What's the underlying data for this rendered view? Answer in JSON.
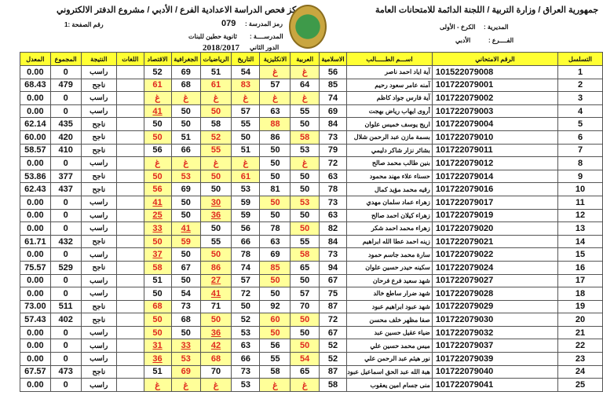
{
  "header": {
    "right_title": "جمهورية العراق / وزارة التربية / اللجنة الدائمة للامتحانات العامة",
    "left_title": "مركز فحص الدراسة الاعدادية الفرع / الأدبي / مشروع الدفتر الالكتروني",
    "directorate_label": "المديرية :",
    "directorate": "الكرخ - الأولى",
    "branch_label": "الفــــرع :",
    "branch": "الأدبي",
    "school_code_label": "رمز المدرسة :",
    "school_code": "079",
    "school_label": "المدرســــة :",
    "school": "ثانوية حطين للبنات",
    "round_label": "الدور الثاني",
    "year": "2018/2017",
    "page_label": "رقم الصفحة :1"
  },
  "columns": [
    "المعدل",
    "المجموع",
    "النتيجة",
    "اللغات",
    "الاقتصاد",
    "الجغرافية",
    "الرياضيات",
    "التاريخ",
    "الانكليزية",
    "العربية",
    "الاسلامية",
    "اســـم الطـــــالب",
    "الرقم الامتحاني",
    "التسلسل"
  ],
  "highlight_colors": {
    "cell": "#ffff99",
    "text": "#e0281e",
    "header": "#ffff33"
  },
  "rows": [
    {
      "seq": "1",
      "exam": "101522079008",
      "name": "آية اياد احمد ناصر",
      "grades": [
        "52",
        "69",
        "51",
        "54",
        "غ",
        "غ",
        "56"
      ],
      "hl": [
        0,
        0,
        0,
        0,
        1,
        1,
        0
      ],
      "u": [],
      "result": "راسب",
      "total": "0",
      "avg": "0.00"
    },
    {
      "seq": "2",
      "exam": "101722079001",
      "name": "آمنه عامر سعود رحيم",
      "grades": [
        "61",
        "68",
        "61",
        "83",
        "57",
        "64",
        "85"
      ],
      "hl": [
        1,
        0,
        1,
        1,
        0,
        0,
        0
      ],
      "u": [],
      "result": "ناجح",
      "total": "479",
      "avg": "68.43"
    },
    {
      "seq": "3",
      "exam": "101722079002",
      "name": "آية فارس جواد كاظم",
      "grades": [
        "غ",
        "غ",
        "غ",
        "غ",
        "غ",
        "غ",
        "74"
      ],
      "hl": [
        1,
        1,
        1,
        1,
        1,
        1,
        0
      ],
      "u": [],
      "result": "راسب",
      "total": "0",
      "avg": "0.00"
    },
    {
      "seq": "4",
      "exam": "101722079003",
      "name": "أروى ايهاب رياض بهجت",
      "grades": [
        "41",
        "50",
        "50",
        "57",
        "63",
        "55",
        "69"
      ],
      "hl": [
        1,
        0,
        1,
        0,
        0,
        0,
        0
      ],
      "u": [
        0
      ],
      "result": "راسب",
      "total": "0",
      "avg": "0.00"
    },
    {
      "seq": "5",
      "exam": "101722079004",
      "name": "اريج يوسف خميس علوان",
      "grades": [
        "50",
        "50",
        "58",
        "55",
        "88",
        "50",
        "84"
      ],
      "hl": [
        0,
        0,
        0,
        0,
        1,
        0,
        0
      ],
      "u": [],
      "result": "ناجح",
      "total": "435",
      "avg": "62.14"
    },
    {
      "seq": "6",
      "exam": "101722079010",
      "name": "بسمة مازن عبد الرحمن شلال",
      "grades": [
        "50",
        "51",
        "52",
        "50",
        "86",
        "58",
        "73"
      ],
      "hl": [
        1,
        0,
        1,
        0,
        0,
        1,
        0
      ],
      "u": [],
      "result": "ناجح",
      "total": "420",
      "avg": "60.00"
    },
    {
      "seq": "7",
      "exam": "101722079011",
      "name": "بشائر نزار شاكر دليمي",
      "grades": [
        "56",
        "66",
        "55",
        "51",
        "50",
        "53",
        "79"
      ],
      "hl": [
        0,
        0,
        1,
        0,
        0,
        0,
        0
      ],
      "u": [],
      "result": "ناجح",
      "total": "410",
      "avg": "58.57"
    },
    {
      "seq": "8",
      "exam": "101722079012",
      "name": "بنين طالب محمد صالح",
      "grades": [
        "غ",
        "غ",
        "غ",
        "غ",
        "50",
        "غ",
        "72"
      ],
      "hl": [
        1,
        1,
        1,
        1,
        0,
        1,
        0
      ],
      "u": [],
      "result": "راسب",
      "total": "0",
      "avg": "0.00"
    },
    {
      "seq": "9",
      "exam": "101722079014",
      "name": "حسناء علاء مهند محمود",
      "grades": [
        "50",
        "53",
        "50",
        "61",
        "50",
        "50",
        "63"
      ],
      "hl": [
        1,
        1,
        1,
        1,
        0,
        0,
        0
      ],
      "u": [],
      "result": "ناجح",
      "total": "377",
      "avg": "53.86"
    },
    {
      "seq": "10",
      "exam": "101722079016",
      "name": "رقيه محمد مؤيد كمال",
      "grades": [
        "56",
        "69",
        "50",
        "53",
        "81",
        "50",
        "78"
      ],
      "hl": [
        1,
        0,
        0,
        0,
        0,
        0,
        0
      ],
      "u": [],
      "result": "ناجح",
      "total": "437",
      "avg": "62.43"
    },
    {
      "seq": "11",
      "exam": "101722079017",
      "name": "زهراء عماد سلمان مهدي",
      "grades": [
        "41",
        "50",
        "30",
        "59",
        "50",
        "53",
        "73"
      ],
      "hl": [
        1,
        0,
        1,
        0,
        1,
        1,
        0
      ],
      "u": [
        0,
        2
      ],
      "result": "راسب",
      "total": "0",
      "avg": "0.00"
    },
    {
      "seq": "12",
      "exam": "101722079019",
      "name": "زهراء كيلان احمد صالح",
      "grades": [
        "25",
        "50",
        "36",
        "59",
        "50",
        "50",
        "63"
      ],
      "hl": [
        1,
        0,
        1,
        0,
        0,
        0,
        0
      ],
      "u": [
        0,
        2
      ],
      "result": "راسب",
      "total": "0",
      "avg": "0.00"
    },
    {
      "seq": "13",
      "exam": "101722079020",
      "name": "زهراء محمد احمد شكر",
      "grades": [
        "33",
        "41",
        "50",
        "56",
        "78",
        "50",
        "82"
      ],
      "hl": [
        1,
        1,
        0,
        0,
        0,
        1,
        0
      ],
      "u": [
        0,
        1
      ],
      "result": "راسب",
      "total": "0",
      "avg": "0.00"
    },
    {
      "seq": "14",
      "exam": "101722079021",
      "name": "زينه احمد عطا الله ابراهيم",
      "grades": [
        "50",
        "59",
        "55",
        "66",
        "63",
        "55",
        "84"
      ],
      "hl": [
        1,
        1,
        0,
        0,
        0,
        0,
        0
      ],
      "u": [],
      "result": "ناجح",
      "total": "432",
      "avg": "61.71"
    },
    {
      "seq": "15",
      "exam": "101722079022",
      "name": "سارة محمد جاسم حمود",
      "grades": [
        "37",
        "50",
        "50",
        "78",
        "69",
        "58",
        "73"
      ],
      "hl": [
        1,
        0,
        1,
        0,
        0,
        1,
        0
      ],
      "u": [
        0
      ],
      "result": "راسب",
      "total": "0",
      "avg": "0.00"
    },
    {
      "seq": "16",
      "exam": "101722079024",
      "name": "سكينه حيدر حسين علوان",
      "grades": [
        "58",
        "67",
        "86",
        "74",
        "85",
        "65",
        "94"
      ],
      "hl": [
        1,
        0,
        1,
        0,
        1,
        0,
        0
      ],
      "u": [],
      "result": "ناجح",
      "total": "529",
      "avg": "75.57"
    },
    {
      "seq": "17",
      "exam": "101722079027",
      "name": "شهد سعيد فرع فرحان",
      "grades": [
        "51",
        "50",
        "27",
        "57",
        "50",
        "50",
        "67"
      ],
      "hl": [
        0,
        0,
        1,
        0,
        1,
        0,
        0
      ],
      "u": [
        2
      ],
      "result": "راسب",
      "total": "0",
      "avg": "0.00"
    },
    {
      "seq": "18",
      "exam": "101722079028",
      "name": "شهد ضرار ساطع خالد",
      "grades": [
        "50",
        "54",
        "41",
        "72",
        "50",
        "57",
        "75"
      ],
      "hl": [
        0,
        0,
        1,
        0,
        0,
        0,
        0
      ],
      "u": [
        2
      ],
      "result": "راسب",
      "total": "0",
      "avg": "0.00"
    },
    {
      "seq": "19",
      "exam": "101722079029",
      "name": "شهد عبود ابراهيم عبود",
      "grades": [
        "68",
        "73",
        "71",
        "50",
        "92",
        "70",
        "87"
      ],
      "hl": [
        1,
        0,
        0,
        0,
        0,
        0,
        0
      ],
      "u": [],
      "result": "ناجح",
      "total": "511",
      "avg": "73.00"
    },
    {
      "seq": "20",
      "exam": "101722079030",
      "name": "صفا مظهر خلف محسن",
      "grades": [
        "50",
        "68",
        "50",
        "52",
        "60",
        "50",
        "72"
      ],
      "hl": [
        1,
        0,
        1,
        0,
        1,
        1,
        0
      ],
      "u": [],
      "result": "ناجح",
      "total": "402",
      "avg": "57.43"
    },
    {
      "seq": "21",
      "exam": "101722079032",
      "name": "ضياء عقيل حسين عبد",
      "grades": [
        "50",
        "50",
        "36",
        "53",
        "50",
        "50",
        "67"
      ],
      "hl": [
        1,
        0,
        1,
        0,
        1,
        0,
        0
      ],
      "u": [
        2
      ],
      "result": "راسب",
      "total": "0",
      "avg": "0.00"
    },
    {
      "seq": "22",
      "exam": "101722079037",
      "name": "ميس محمد حسين علي",
      "grades": [
        "31",
        "33",
        "42",
        "63",
        "56",
        "50",
        "52"
      ],
      "hl": [
        1,
        1,
        1,
        0,
        0,
        1,
        0
      ],
      "u": [
        0,
        1,
        2
      ],
      "result": "راسب",
      "total": "0",
      "avg": "0.00"
    },
    {
      "seq": "23",
      "exam": "101722079039",
      "name": "نور هيثم عبد الرحمن علي",
      "grades": [
        "36",
        "53",
        "68",
        "66",
        "55",
        "54",
        "52"
      ],
      "hl": [
        1,
        1,
        1,
        0,
        0,
        1,
        0
      ],
      "u": [
        0
      ],
      "result": "راسب",
      "total": "0",
      "avg": "0.00"
    },
    {
      "seq": "24",
      "exam": "101722079040",
      "name": "هبة الله عبد الحق اسماعيل عبود",
      "grades": [
        "51",
        "69",
        "70",
        "73",
        "58",
        "65",
        "87"
      ],
      "hl": [
        0,
        1,
        0,
        0,
        0,
        0,
        0
      ],
      "u": [],
      "result": "ناجح",
      "total": "473",
      "avg": "67.57"
    },
    {
      "seq": "25",
      "exam": "101722079041",
      "name": "منى جسام امين يعقوب",
      "grades": [
        "غ",
        "غ",
        "غ",
        "53",
        "غ",
        "غ",
        "58"
      ],
      "hl": [
        1,
        1,
        1,
        0,
        1,
        1,
        0
      ],
      "u": [],
      "result": "راسب",
      "total": "0",
      "avg": "0.00"
    }
  ]
}
